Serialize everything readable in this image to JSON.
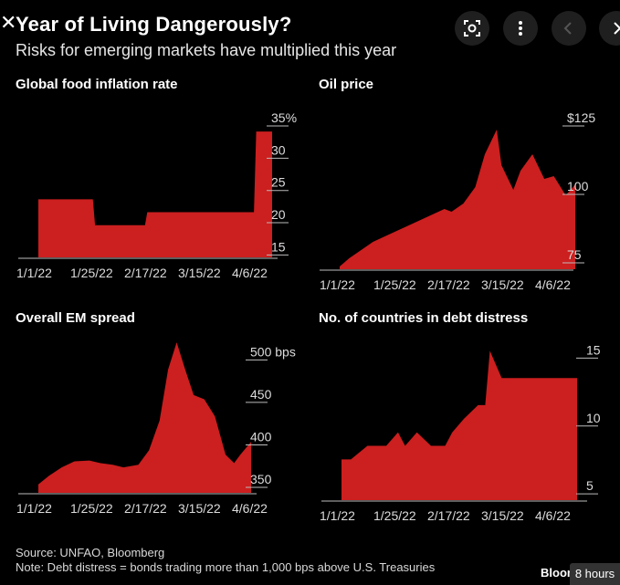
{
  "header": {
    "title": "Year of Living Dangerously?",
    "subtitle": "Risks for emerging markets have multiplied this year"
  },
  "toolbar": {
    "close_icon": "close-icon",
    "lens_icon": "lens-icon",
    "more_icon": "more-vert-icon",
    "prev_icon": "chevron-left-icon",
    "next_icon": "chevron-right-icon"
  },
  "footer": {
    "source": "Source: UNFAO, Bloomberg",
    "note": "Note: Debt distress = bonds trading more than 1,000 bps above U.S. Treasuries",
    "brand": "Bloom",
    "time_badge": "8 hours"
  },
  "colors": {
    "fill": "#cc1f1f",
    "background": "#000000",
    "text": "#ffffff"
  },
  "chart_data": [
    {
      "type": "area",
      "title": "Global food inflation rate",
      "x_ticks": [
        "1/1/22",
        "1/25/22",
        "2/17/22",
        "3/15/22",
        "4/6/22"
      ],
      "y_ticks": [
        "15",
        "20",
        "25",
        "30",
        "35%"
      ],
      "y_tick_values": [
        15,
        20,
        25,
        30,
        35
      ],
      "ylim": [
        13.5,
        35
      ],
      "x": [
        "1/1/22",
        "1/25/22",
        "1/26/22",
        "2/17/22",
        "2/18/22",
        "3/15/22",
        "4/6/22",
        "4/7/22",
        "4/14/22"
      ],
      "values": [
        22.5,
        22.5,
        18.5,
        18.5,
        20.5,
        20.5,
        20.5,
        33,
        33
      ]
    },
    {
      "type": "area",
      "title": "Oil price",
      "x_ticks": [
        "1/1/22",
        "1/25/22",
        "2/17/22",
        "3/15/22",
        "4/6/22"
      ],
      "y_ticks": [
        "75",
        "100",
        "$125"
      ],
      "y_tick_values": [
        75,
        100,
        125
      ],
      "ylim": [
        70,
        125
      ],
      "x": [
        "1/1/22",
        "1/5/22",
        "1/10/22",
        "1/15/22",
        "1/20/22",
        "1/25/22",
        "1/30/22",
        "2/4/22",
        "2/9/22",
        "2/14/22",
        "2/17/22",
        "2/22/22",
        "2/27/22",
        "3/3/22",
        "3/8/22",
        "3/10/22",
        "3/15/22",
        "3/18/22",
        "3/23/22",
        "3/28/22",
        "4/1/22",
        "4/6/22",
        "4/10/22"
      ],
      "values": [
        71,
        74,
        77,
        80,
        82,
        84,
        86,
        88,
        90,
        92,
        91,
        94,
        100,
        112,
        121,
        108,
        99,
        106,
        112,
        103,
        104,
        97,
        101
      ]
    },
    {
      "type": "area",
      "title": "Overall EM spread",
      "x_ticks": [
        "1/1/22",
        "1/25/22",
        "2/17/22",
        "3/15/22",
        "4/6/22"
      ],
      "y_ticks": [
        "350",
        "400",
        "450",
        "500 bps"
      ],
      "y_tick_values": [
        350,
        400,
        450,
        500
      ],
      "ylim": [
        335,
        510
      ],
      "x": [
        "1/1/22",
        "1/6/22",
        "1/12/22",
        "1/18/22",
        "1/25/22",
        "1/30/22",
        "2/5/22",
        "2/10/22",
        "2/17/22",
        "2/22/22",
        "2/27/22",
        "3/3/22",
        "3/7/22",
        "3/11/22",
        "3/15/22",
        "3/20/22",
        "3/25/22",
        "3/30/22",
        "4/3/22",
        "4/6/22",
        "4/11/22"
      ],
      "values": [
        345,
        355,
        365,
        372,
        373,
        370,
        368,
        365,
        368,
        385,
        420,
        480,
        512,
        480,
        450,
        445,
        425,
        380,
        370,
        380,
        395
      ]
    },
    {
      "type": "area",
      "title": "No. of countries in debt distress",
      "x_ticks": [
        "1/1/22",
        "1/25/22",
        "2/17/22",
        "3/15/22",
        "4/6/22"
      ],
      "y_ticks": [
        "5",
        "10",
        "15"
      ],
      "y_tick_values": [
        5,
        10,
        15
      ],
      "ylim": [
        4,
        15.5
      ],
      "x": [
        "1/1/22",
        "1/5/22",
        "1/12/22",
        "1/20/22",
        "1/25/22",
        "1/28/22",
        "2/2/22",
        "2/8/22",
        "2/14/22",
        "2/17/22",
        "2/22/22",
        "2/28/22",
        "3/3/22",
        "3/5/22",
        "3/10/22",
        "3/15/22",
        "3/22/22",
        "3/30/22",
        "4/6/22",
        "4/11/22"
      ],
      "values": [
        7,
        7,
        8,
        8,
        9,
        8,
        9,
        8,
        8,
        9,
        10,
        11,
        11,
        15,
        13,
        13,
        13,
        13,
        13,
        13
      ]
    }
  ]
}
